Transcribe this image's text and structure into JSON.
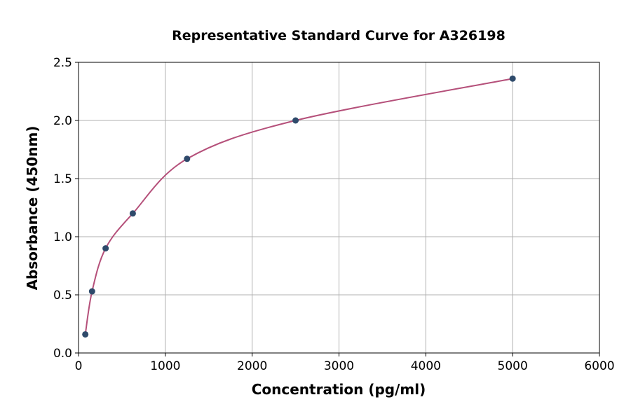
{
  "chart_data": {
    "type": "scatter",
    "title": "Representative Standard Curve for A326198",
    "xlabel": "Concentration (pg/ml)",
    "ylabel": "Absorbance (450nm)",
    "xlim": [
      0,
      6000
    ],
    "ylim": [
      0,
      2.5
    ],
    "xticks": [
      0,
      1000,
      2000,
      3000,
      4000,
      5000,
      6000
    ],
    "yticks": [
      "0.0",
      "0.5",
      "1.0",
      "1.5",
      "2.0",
      "2.5"
    ],
    "grid": true,
    "series": [
      {
        "x": [
          78,
          156,
          312,
          625,
          1250,
          2500,
          5000
        ],
        "y": [
          0.16,
          0.53,
          0.9,
          1.2,
          1.67,
          2.0,
          2.36
        ]
      }
    ],
    "colors": {
      "points": "#2e4a6b",
      "curve": "#b5507a"
    },
    "fit_curve": true
  }
}
